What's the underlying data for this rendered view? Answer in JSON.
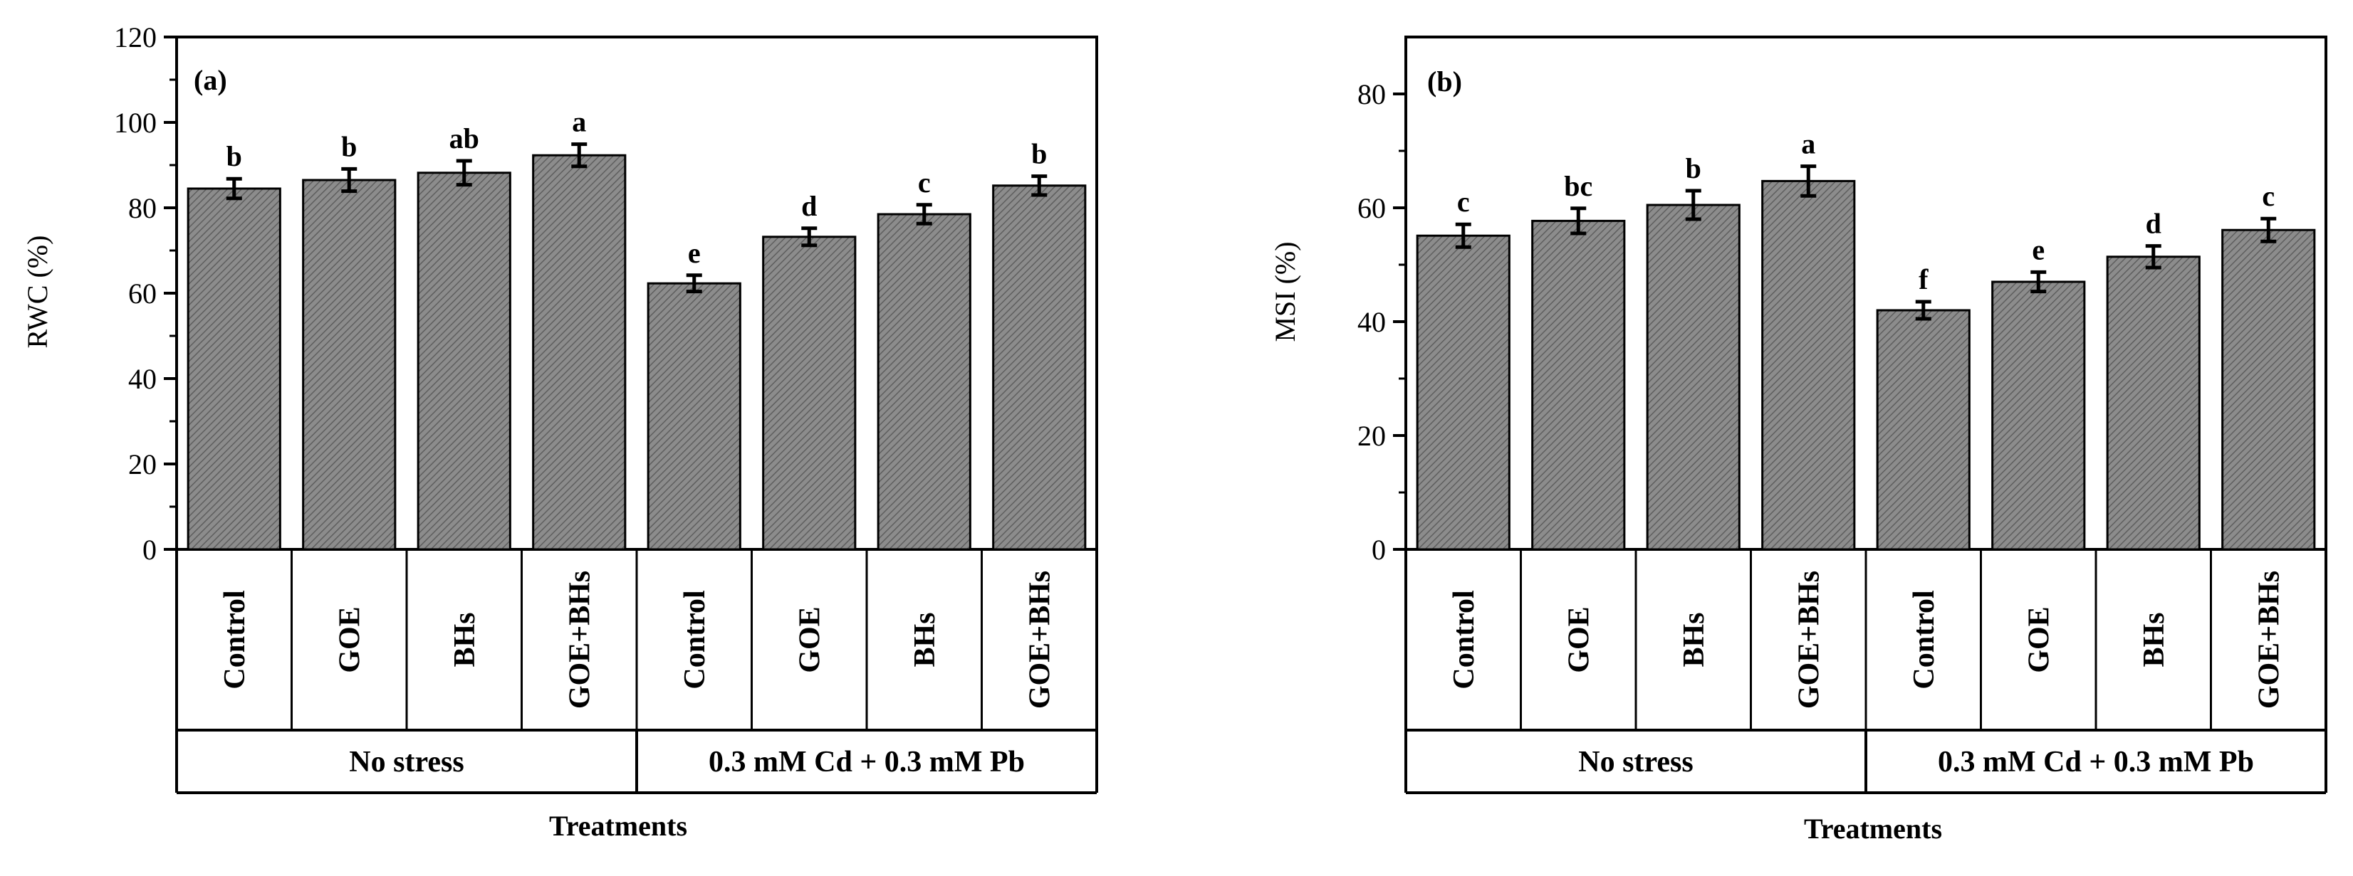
{
  "chart_data": [
    {
      "type": "bar",
      "panel_label": "(a)",
      "ylabel": "RWC (%)",
      "xlabel": "Treatments",
      "ylim": [
        0,
        120
      ],
      "yticks": [
        0,
        20,
        40,
        60,
        80,
        100,
        120
      ],
      "categories": [
        "Control",
        "GOE",
        "BHs",
        "GOE+BHs",
        "Control",
        "GOE",
        "BHs",
        "GOE+BHs"
      ],
      "groups": [
        {
          "label": "No stress",
          "count": 4
        },
        {
          "label": "0.3 mM Cd + 0.3 mM Pb",
          "count": 4
        }
      ],
      "values": [
        84.5,
        86.5,
        88.2,
        92.3,
        62.3,
        73.2,
        78.5,
        85.2
      ],
      "errors": [
        2.3,
        2.6,
        2.8,
        2.6,
        1.9,
        2.0,
        2.2,
        2.2
      ],
      "letters": [
        "b",
        "b",
        "ab",
        "a",
        "e",
        "d",
        "c",
        "b"
      ]
    },
    {
      "type": "bar",
      "panel_label": "(b)",
      "ylabel": "MSI (%)",
      "xlabel": "Treatments",
      "ylim": [
        0,
        90
      ],
      "yticks": [
        0,
        20,
        40,
        60,
        80
      ],
      "categories": [
        "Control",
        "GOE",
        "BHs",
        "GOE+BHs",
        "Control",
        "GOE",
        "BHs",
        "GOE+BHs"
      ],
      "groups": [
        {
          "label": "No stress",
          "count": 4
        },
        {
          "label": "0.3 mM Cd + 0.3 mM Pb",
          "count": 4
        }
      ],
      "values": [
        55.1,
        57.7,
        60.5,
        64.7,
        42.0,
        47.0,
        51.4,
        56.1
      ],
      "errors": [
        2.0,
        2.2,
        2.5,
        2.6,
        1.5,
        1.7,
        1.9,
        2.0
      ],
      "letters": [
        "c",
        "bc",
        "b",
        "a",
        "f",
        "e",
        "d",
        "c"
      ]
    }
  ],
  "colors": {
    "bar_fill": "#8c8c8c",
    "hatch": "#5e5e5e",
    "ink": "#000000"
  }
}
